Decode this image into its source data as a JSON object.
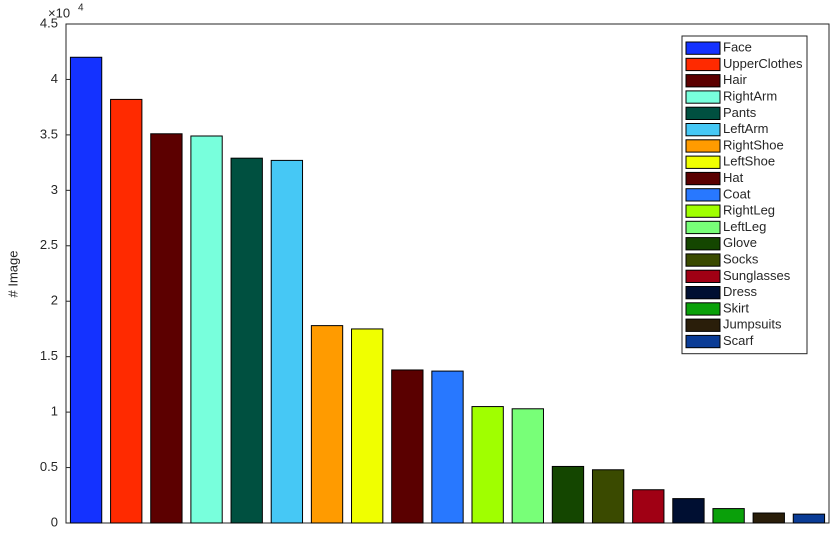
{
  "chart_data": {
    "type": "bar",
    "y_label": "# Image",
    "y_multiplier": "×10",
    "y_multiplier_exponent": "4",
    "categories": [
      "Face",
      "UpperClothes",
      "Hair",
      "RightArm",
      "Pants",
      "LeftArm",
      "RightShoe",
      "LeftShoe",
      "Hat",
      "Coat",
      "RightLeg",
      "LeftLeg",
      "Glove",
      "Socks",
      "Sunglasses",
      "Dress",
      "Skirt",
      "Jumpsuits",
      "Scarf"
    ],
    "values": [
      4.2,
      3.82,
      3.51,
      3.49,
      3.29,
      3.27,
      1.78,
      1.75,
      1.38,
      1.37,
      1.05,
      1.03,
      0.51,
      0.48,
      0.3,
      0.22,
      0.13,
      0.09,
      0.08
    ],
    "colors": [
      "#1432ff",
      "#ff2a00",
      "#5c0000",
      "#78ffdc",
      "#005040",
      "#46c8f5",
      "#ff9b00",
      "#f0ff00",
      "#5a0000",
      "#2878ff",
      "#a0ff00",
      "#78ff78",
      "#144600",
      "#3a4a00",
      "#a00014",
      "#000f32",
      "#0aa00a",
      "#2a1e0a",
      "#0a3c96"
    ],
    "ylim": [
      0,
      4.5
    ],
    "yticks": [
      0,
      0.5,
      1,
      1.5,
      2,
      2.5,
      3,
      3.5,
      4,
      4.5
    ],
    "legend": "top-right"
  }
}
